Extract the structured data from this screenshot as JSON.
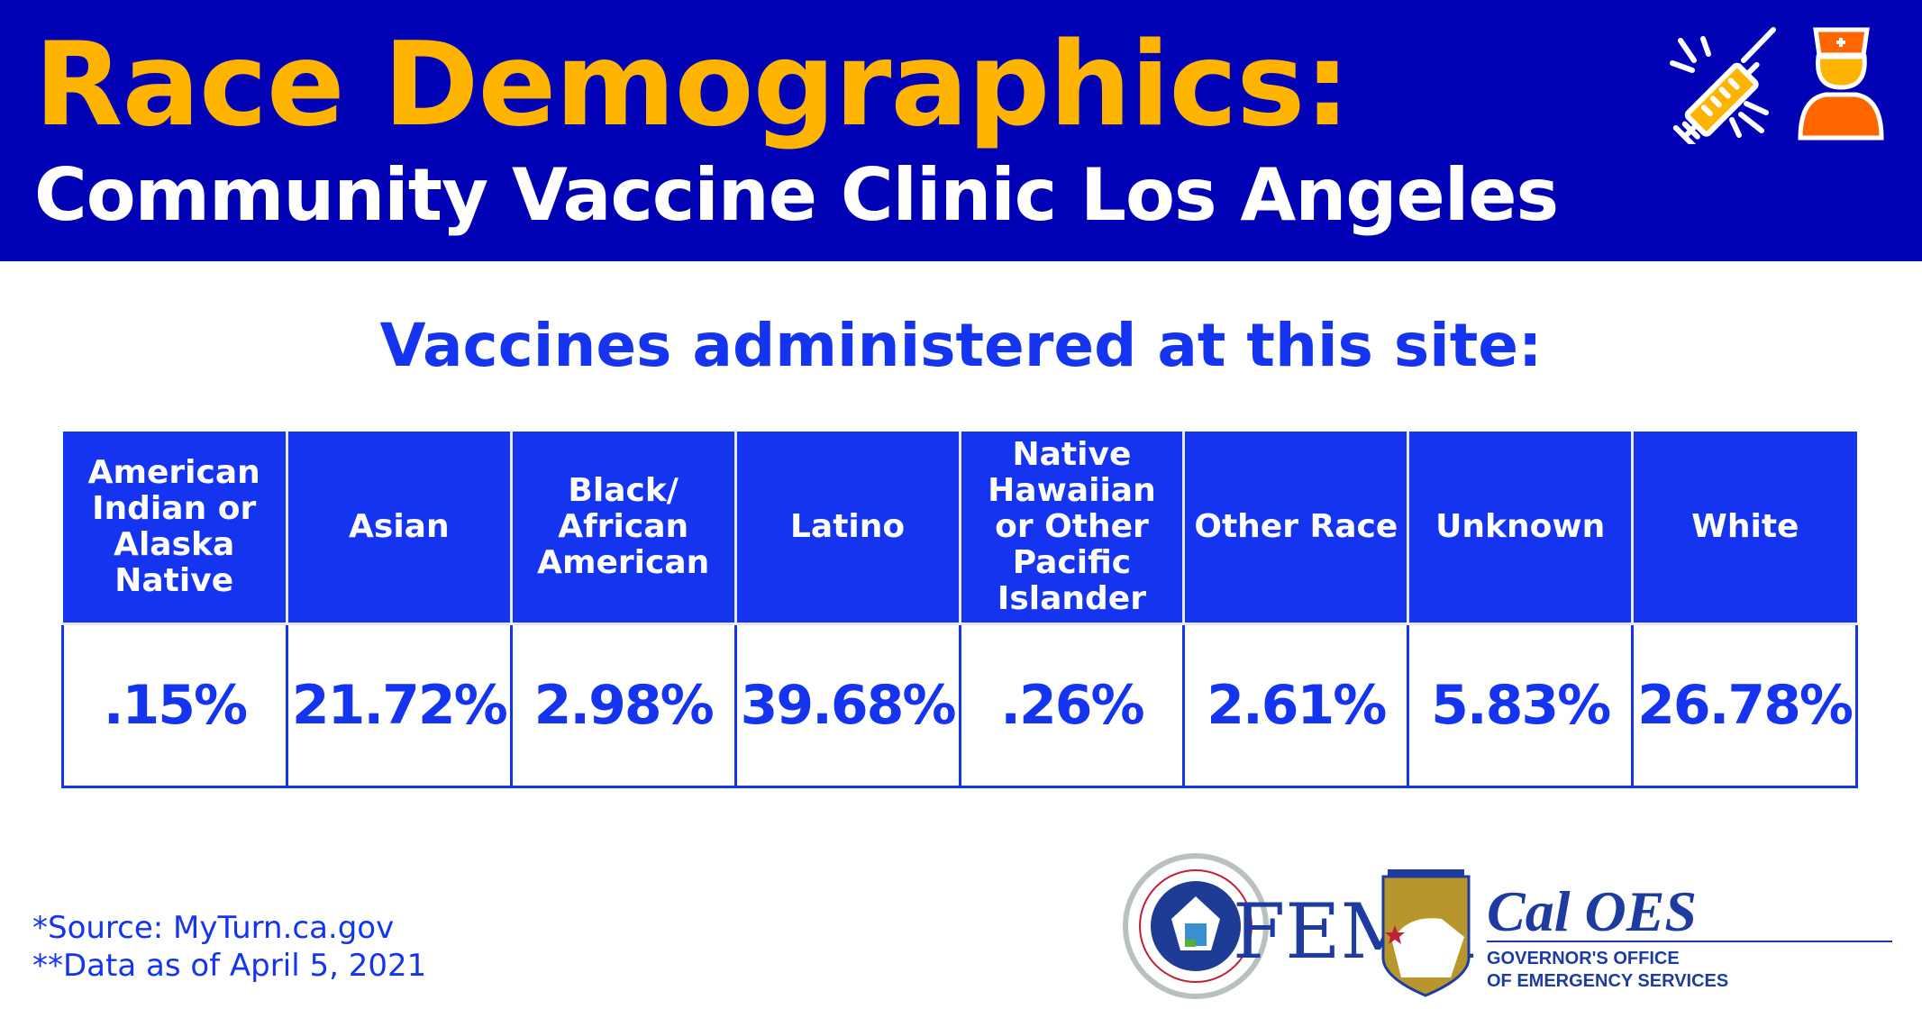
{
  "header": {
    "title": "Race Demographics:",
    "subtitle": "Community Vaccine Clinic Los Angeles",
    "icons": [
      "syringe-icon",
      "nurse-icon"
    ]
  },
  "subheading": "Vaccines administered at this site:",
  "table": {
    "columns": [
      "American Indian or Alaska Native",
      "Asian",
      "Black/ African American",
      "Latino",
      "Native Hawaiian or Other Pacific Islander",
      "Other Race",
      "Unknown",
      "White"
    ],
    "values": [
      ".15%",
      "21.72%",
      "2.98%",
      "39.68%",
      ".26%",
      "2.61%",
      "5.83%",
      "26.78%"
    ]
  },
  "footer": {
    "source": "*Source: MyTurn.ca.gov",
    "date": "**Data as of April 5, 2021"
  },
  "logos": {
    "dhs": "U.S. Department of Homeland Security",
    "fema": "FEMA",
    "caloes": "Cal OES",
    "caloes_sub1": "GOVERNOR'S OFFICE",
    "caloes_sub2": "OF EMERGENCY SERVICES"
  },
  "colors": {
    "banner": "#0000b4",
    "accent": "#ffb400",
    "blue": "#1434f0",
    "orange": "#ff6600"
  }
}
